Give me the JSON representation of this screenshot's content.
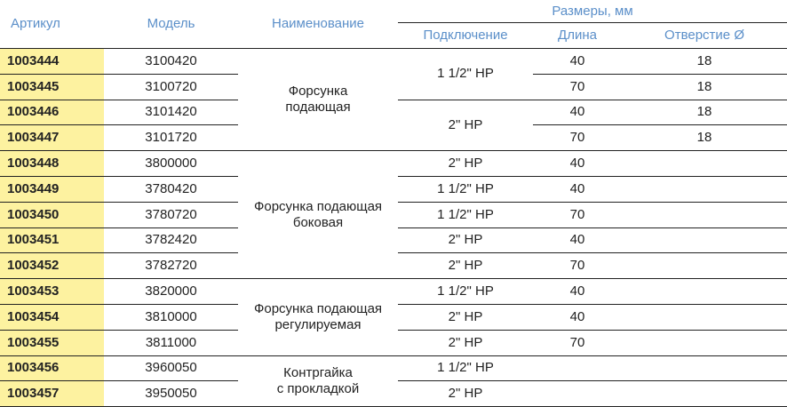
{
  "header": {
    "article": "Артикул",
    "model": "Модель",
    "name": "Наименование",
    "sizes": "Размеры, мм",
    "connection": "Подключение",
    "length": "Длина",
    "hole": "Отверстие Ø"
  },
  "colors": {
    "header_text": "#5b8fc9",
    "article_bg": "#fdf2a0"
  },
  "groups": [
    {
      "name": "Форсунка\nподающая",
      "connections": [
        "1 1/2\" HP",
        "2\" HP"
      ]
    },
    {
      "name": "Форсунка подающая\nбоковая"
    },
    {
      "name": "Форсунка подающая\nрегулируемая"
    },
    {
      "name": "Контргайка\nс прокладкой"
    }
  ],
  "rows": [
    {
      "article": "1003444",
      "model": "3100420",
      "length": "40",
      "hole": "18"
    },
    {
      "article": "1003445",
      "model": "3100720",
      "length": "70",
      "hole": "18"
    },
    {
      "article": "1003446",
      "model": "3101420",
      "length": "40",
      "hole": "18"
    },
    {
      "article": "1003447",
      "model": "3101720",
      "length": "70",
      "hole": "18"
    },
    {
      "article": "1003448",
      "model": "3800000",
      "connection": "2\" HP",
      "length": "40",
      "hole": ""
    },
    {
      "article": "1003449",
      "model": "3780420",
      "connection": "1 1/2\" HP",
      "length": "40",
      "hole": ""
    },
    {
      "article": "1003450",
      "model": "3780720",
      "connection": "1 1/2\" HP",
      "length": "70",
      "hole": ""
    },
    {
      "article": "1003451",
      "model": "3782420",
      "connection": "2\" HP",
      "length": "40",
      "hole": ""
    },
    {
      "article": "1003452",
      "model": "3782720",
      "connection": "2\" HP",
      "length": "70",
      "hole": ""
    },
    {
      "article": "1003453",
      "model": "3820000",
      "connection": "1 1/2\" HP",
      "length": "40",
      "hole": ""
    },
    {
      "article": "1003454",
      "model": "3810000",
      "connection": "2\" HP",
      "length": "40",
      "hole": ""
    },
    {
      "article": "1003455",
      "model": "3811000",
      "connection": "2\" HP",
      "length": "70",
      "hole": ""
    },
    {
      "article": "1003456",
      "model": "3960050",
      "connection": "1 1/2\" HP",
      "length": "",
      "hole": ""
    },
    {
      "article": "1003457",
      "model": "3950050",
      "connection": "2\" HP",
      "length": "",
      "hole": ""
    }
  ]
}
